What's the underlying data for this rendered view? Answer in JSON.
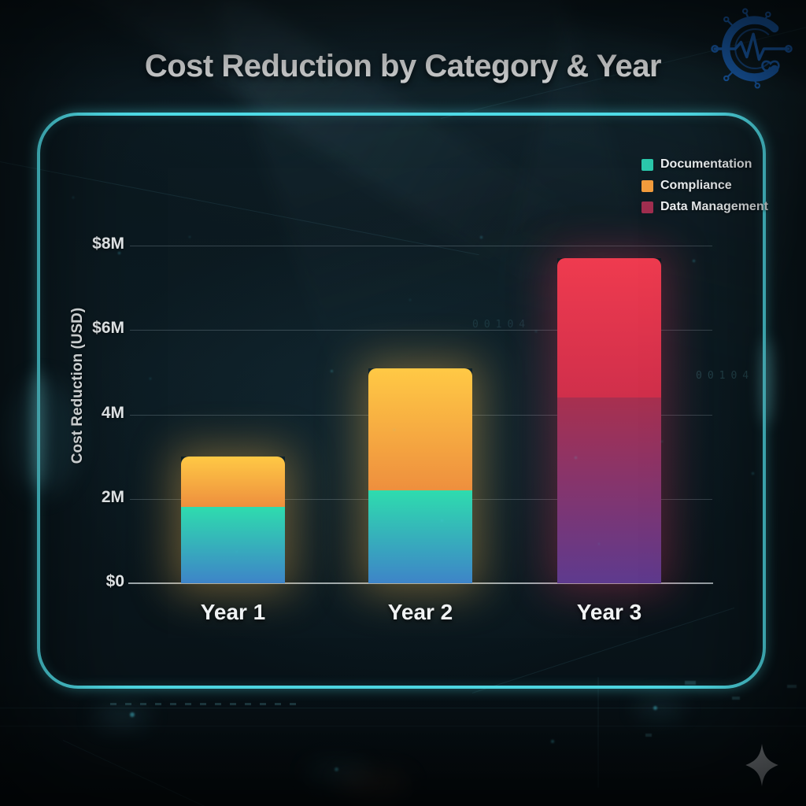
{
  "title": "Cost Reduction by Category & Year",
  "legend": {
    "items": [
      {
        "label": "Documentation",
        "color": "#2bc9ac"
      },
      {
        "label": "Compliance",
        "color": "#f29c3d"
      },
      {
        "label": "Data Management",
        "color": "#a02f50"
      }
    ]
  },
  "y_axis": {
    "title": "Cost Reduction (USD)",
    "ticks": [
      {
        "label": "$8M",
        "value": 8
      },
      {
        "label": "$6M",
        "value": 6
      },
      {
        "label": "4M",
        "value": 4
      },
      {
        "label": "2M",
        "value": 2
      },
      {
        "label": "$0",
        "value": 0
      }
    ]
  },
  "x_axis": {
    "categories": [
      "Year 1",
      "Year 2",
      "Year 3"
    ]
  },
  "chart_data": {
    "type": "bar",
    "stacked": true,
    "title": "Cost Reduction by Category & Year",
    "ylabel": "Cost Reduction (USD)",
    "units": "USD millions (M)",
    "ylim": [
      0,
      8.6
    ],
    "grid": true,
    "legend_position": "top-right-inside",
    "categories": [
      "Year 1",
      "Year 2",
      "Year 3"
    ],
    "series": [
      {
        "name": "Documentation",
        "values": [
          1.8,
          2.2,
          0
        ],
        "color": "#2bc9ac",
        "gradient": [
          "#2edcae",
          "#3e84c8"
        ]
      },
      {
        "name": "Compliance",
        "values": [
          1.2,
          2.9,
          0
        ],
        "color": "#f29c3d",
        "gradient": [
          "#ffc945",
          "#ee8f3e"
        ]
      },
      {
        "name": "Data Management",
        "values": [
          0,
          0,
          4.4
        ],
        "color": "#a02f50",
        "gradient": [
          "#a8304f",
          "#5e3a8e"
        ]
      },
      {
        "name": "Unlabeled red top segment (Year 3)",
        "values": [
          0,
          0,
          3.3
        ],
        "color": "#e23349",
        "gradient": [
          "#ef3b4f",
          "#d02f4b"
        ]
      }
    ],
    "totals": [
      3.0,
      5.1,
      7.7
    ],
    "bar_glows": [
      "rgba(255,190,80,0.38)",
      "rgba(255,190,80,0.38)",
      "rgba(232,52,92,0.33)"
    ]
  },
  "decor": {
    "faint_digits": "00104"
  },
  "branding": {
    "logo_icon": "circuit-c-heartbeat-logo",
    "logo_color": "#1b63b8",
    "sparkle_icon": "four-point-star",
    "sparkle_color": "#9ba2a8"
  },
  "frame": {
    "border_color": "#53e6f2"
  }
}
